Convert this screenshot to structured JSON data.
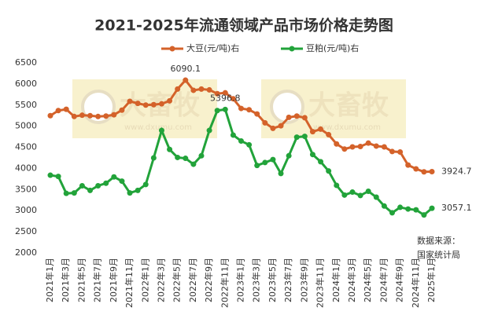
{
  "chart_data": {
    "type": "line",
    "title": "2021-2025年流通领域产品市场价格走势图",
    "categories": [
      "2021年1月",
      null,
      "2021年3月",
      null,
      "2021年5月",
      null,
      "2021年7月",
      null,
      "2021年9月",
      null,
      "2021年11月",
      null,
      "2022年1月",
      null,
      "2022年3月",
      null,
      "2022年5月",
      null,
      "2022年7月",
      null,
      "2022年9月",
      null,
      "2022年11月",
      null,
      "2023年1月",
      null,
      "2023年3月",
      null,
      "2023年5月",
      null,
      "2023年7月",
      null,
      "2023年9月",
      null,
      "2023年11月",
      null,
      "2024年1月",
      null,
      "2024年3月",
      null,
      "2024年5月",
      null,
      "2024年7月",
      null,
      "2024年9月",
      null,
      "2024年11月",
      null,
      "2025年1月"
    ],
    "series": [
      {
        "name": "大豆(元/吨)右",
        "color": "#d4622a",
        "values": [
          5250,
          5370,
          5400,
          5230,
          5260,
          5250,
          5230,
          5240,
          5270,
          5380,
          5590,
          5540,
          5500,
          5510,
          5530,
          5600,
          5880,
          6090.1,
          5850,
          5880,
          5860,
          5770,
          5790,
          5650,
          5420,
          5390,
          5290,
          5080,
          4950,
          5010,
          5210,
          5240,
          5200,
          4870,
          4930,
          4800,
          4580,
          4460,
          4510,
          4520,
          4600,
          4530,
          4510,
          4400,
          4390,
          4080,
          3990,
          3920,
          3924.7
        ]
      },
      {
        "name": "豆粕(元/吨)右",
        "color": "#22a33a",
        "values": [
          3840,
          3810,
          3410,
          3420,
          3590,
          3480,
          3590,
          3650,
          3800,
          3700,
          3420,
          3480,
          3620,
          4250,
          4900,
          4450,
          4260,
          4240,
          4100,
          4300,
          4900,
          5370,
          5396.8,
          4790,
          4650,
          4560,
          4070,
          4140,
          4210,
          3880,
          4300,
          4740,
          4760,
          4330,
          4160,
          3940,
          3600,
          3370,
          3440,
          3360,
          3460,
          3320,
          3110,
          2950,
          3080,
          3040,
          3020,
          2900,
          3057.1
        ]
      }
    ],
    "ylim": [
      2000,
      6500
    ],
    "yticks": [
      2000,
      2500,
      3000,
      3500,
      4000,
      4500,
      5000,
      5500,
      6000,
      6500
    ],
    "grid": false,
    "legend": "top",
    "source": [
      "数据来源：",
      "国家统计局"
    ],
    "watermark": "大畜牧",
    "watermark_url": "www.dxumu.com"
  }
}
